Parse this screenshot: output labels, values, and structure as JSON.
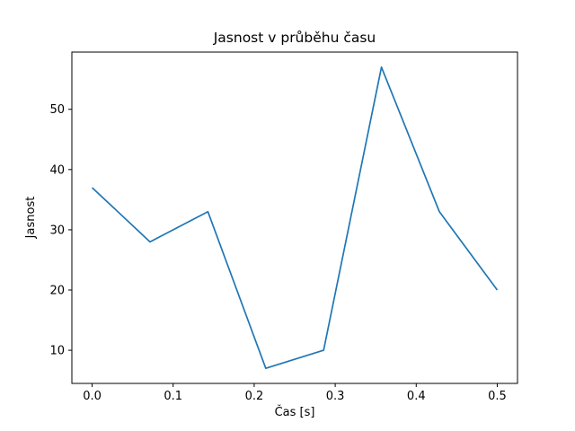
{
  "chart_data": {
    "type": "line",
    "title": "Jasnost v průběhu času",
    "xlabel": "Čas [s]",
    "ylabel": "Jasnost",
    "x": [
      0.0,
      0.0714,
      0.1429,
      0.2143,
      0.2857,
      0.3571,
      0.4286,
      0.5
    ],
    "y": [
      37,
      28,
      33,
      7,
      10,
      57,
      33,
      20
    ],
    "series": [
      {
        "name": "Jasnost",
        "x": [
          0.0,
          0.0714,
          0.1429,
          0.2143,
          0.2857,
          0.3571,
          0.4286,
          0.5
        ],
        "values": [
          37,
          28,
          33,
          7,
          10,
          57,
          33,
          20
        ]
      }
    ],
    "line_color": "#1f77b4",
    "background_color": "#ffffff",
    "spine_color": "#000000",
    "xlim": [
      -0.025,
      0.525
    ],
    "ylim": [
      4.5,
      59.5
    ],
    "xticks": [
      0.0,
      0.1,
      0.2,
      0.3,
      0.4,
      0.5
    ],
    "xtick_labels": [
      "0.0",
      "0.1",
      "0.2",
      "0.3",
      "0.4",
      "0.5"
    ],
    "yticks": [
      10,
      20,
      30,
      40,
      50
    ],
    "ytick_labels": [
      "10",
      "20",
      "30",
      "40",
      "50"
    ],
    "grid": false,
    "legend": null
  }
}
